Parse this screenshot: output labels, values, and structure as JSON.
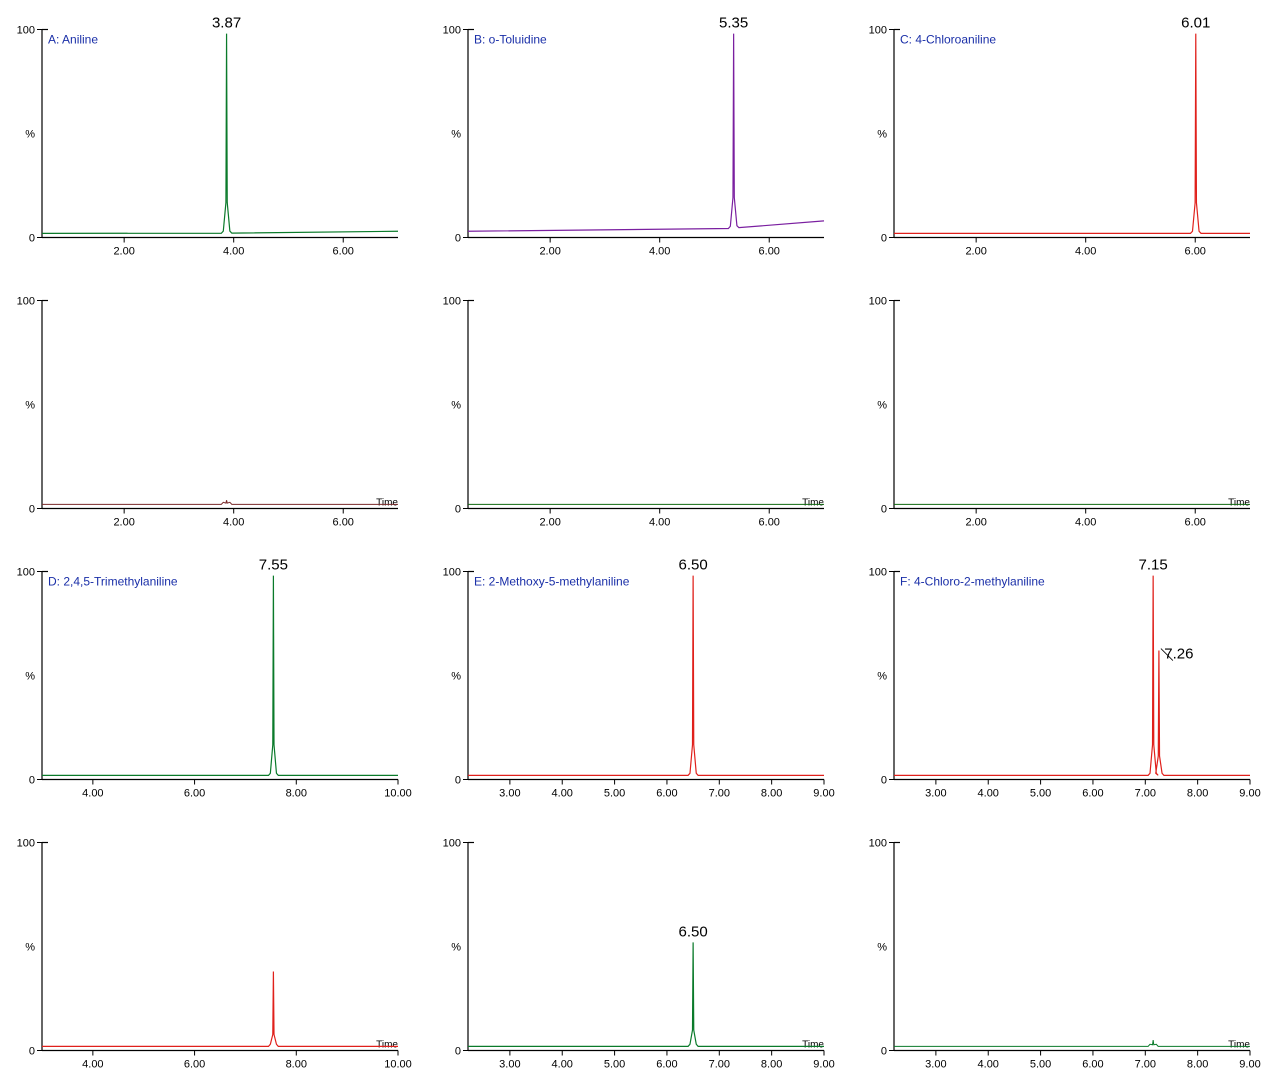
{
  "figure": {
    "grid": {
      "rows": 4,
      "cols": 3
    },
    "background_color": "#ffffff",
    "axis_color": "#000000",
    "axis_stroke_width": 1.2,
    "tick_length": 5,
    "tick_stroke_width": 1,
    "font": {
      "axis_tick_size_pt": 11,
      "compound_label_size_pt": 12,
      "compound_label_color": "#1a2fa8",
      "peak_label_size_pt": 15,
      "time_label_size_pt": 10
    },
    "y_axis": {
      "ylim": [
        0,
        100
      ],
      "ticks": [
        0,
        100
      ],
      "tick_labels": [
        "0",
        "100"
      ],
      "pct_label": "%",
      "pct_label_pos": 50
    },
    "x_axis_time_label": "Time",
    "baseline_y": 2,
    "peak_half_width_x": 0.06
  },
  "panels": [
    {
      "id": "A",
      "row": 0,
      "col": 0,
      "compound_label": "A: Aniline",
      "xlim": [
        0.5,
        7.0
      ],
      "xticks": [
        2.0,
        4.0,
        6.0
      ],
      "xtick_labels": [
        "2.00",
        "4.00",
        "6.00"
      ],
      "show_time_label": false,
      "traces": [
        {
          "color": "#0a7a2a",
          "stroke_width": 1.2,
          "baseline_points": [
            [
              0.5,
              2
            ],
            [
              3.6,
              2
            ],
            [
              7.0,
              3
            ]
          ],
          "peaks": [
            {
              "x": 3.87,
              "height": 98,
              "label": "3.87"
            }
          ]
        }
      ]
    },
    {
      "id": "B",
      "row": 0,
      "col": 1,
      "compound_label": "B: o-Toluidine",
      "xlim": [
        0.5,
        7.0
      ],
      "xticks": [
        2.0,
        4.0,
        6.0
      ],
      "xtick_labels": [
        "2.00",
        "4.00",
        "6.00"
      ],
      "show_time_label": false,
      "traces": [
        {
          "color": "#7a1fa0",
          "stroke_width": 1.2,
          "baseline_points": [
            [
              0.5,
              3
            ],
            [
              4.5,
              4
            ],
            [
              5.1,
              4
            ],
            [
              7.0,
              8
            ]
          ],
          "peaks": [
            {
              "x": 5.35,
              "height": 98,
              "label": "5.35"
            }
          ]
        }
      ]
    },
    {
      "id": "C",
      "row": 0,
      "col": 2,
      "compound_label": "C: 4-Chloroaniline",
      "xlim": [
        0.5,
        7.0
      ],
      "xticks": [
        2.0,
        4.0,
        6.0
      ],
      "xtick_labels": [
        "2.00",
        "4.00",
        "6.00"
      ],
      "show_time_label": false,
      "traces": [
        {
          "color": "#e0201b",
          "stroke_width": 1.2,
          "baseline_points": [
            [
              0.5,
              2
            ],
            [
              5.8,
              2
            ],
            [
              7.0,
              2
            ]
          ],
          "peaks": [
            {
              "x": 6.01,
              "height": 98,
              "label": "6.01"
            }
          ]
        }
      ]
    },
    {
      "id": "A2",
      "row": 1,
      "col": 0,
      "compound_label": "",
      "xlim": [
        0.5,
        7.0
      ],
      "xticks": [
        2.0,
        4.0,
        6.0
      ],
      "xtick_labels": [
        "2.00",
        "4.00",
        "6.00"
      ],
      "show_time_label": true,
      "traces": [
        {
          "color": "#7a2a2a",
          "stroke_width": 1.0,
          "baseline_points": [
            [
              0.5,
              2
            ],
            [
              7.0,
              2
            ]
          ],
          "peaks": [
            {
              "x": 3.87,
              "height": 4,
              "label": ""
            }
          ]
        }
      ]
    },
    {
      "id": "B2",
      "row": 1,
      "col": 1,
      "compound_label": "",
      "xlim": [
        0.5,
        7.0
      ],
      "xticks": [
        2.0,
        4.0,
        6.0
      ],
      "xtick_labels": [
        "2.00",
        "4.00",
        "6.00"
      ],
      "show_time_label": true,
      "traces": [
        {
          "color": "#106a10",
          "stroke_width": 1.0,
          "baseline_points": [
            [
              0.5,
              2
            ],
            [
              7.0,
              2
            ]
          ],
          "peaks": []
        }
      ]
    },
    {
      "id": "C2",
      "row": 1,
      "col": 2,
      "compound_label": "",
      "xlim": [
        0.5,
        7.0
      ],
      "xticks": [
        2.0,
        4.0,
        6.0
      ],
      "xtick_labels": [
        "2.00",
        "4.00",
        "6.00"
      ],
      "show_time_label": true,
      "traces": [
        {
          "color": "#106a10",
          "stroke_width": 1.0,
          "baseline_points": [
            [
              0.5,
              2
            ],
            [
              7.0,
              2
            ]
          ],
          "peaks": []
        }
      ]
    },
    {
      "id": "D",
      "row": 2,
      "col": 0,
      "compound_label": "D: 2,4,5-Trimethylaniline",
      "xlim": [
        3.0,
        10.0
      ],
      "xticks": [
        4.0,
        6.0,
        8.0,
        10.0
      ],
      "xtick_labels": [
        "4.00",
        "6.00",
        "8.00",
        "10.00"
      ],
      "show_time_label": false,
      "traces": [
        {
          "color": "#0a7a2a",
          "stroke_width": 1.2,
          "baseline_points": [
            [
              3.0,
              2
            ],
            [
              7.3,
              2
            ],
            [
              10.0,
              2
            ]
          ],
          "peaks": [
            {
              "x": 7.55,
              "height": 98,
              "label": "7.55"
            }
          ]
        }
      ]
    },
    {
      "id": "E",
      "row": 2,
      "col": 1,
      "compound_label": "E: 2-Methoxy-5-methylaniline",
      "xlim": [
        2.2,
        9.0
      ],
      "xticks": [
        3.0,
        4.0,
        5.0,
        6.0,
        7.0,
        8.0,
        9.0
      ],
      "xtick_labels": [
        "3.00",
        "4.00",
        "5.00",
        "6.00",
        "7.00",
        "8.00",
        "9.00"
      ],
      "show_time_label": false,
      "traces": [
        {
          "color": "#e0201b",
          "stroke_width": 1.2,
          "baseline_points": [
            [
              2.2,
              2
            ],
            [
              6.3,
              2
            ],
            [
              9.0,
              2
            ]
          ],
          "peaks": [
            {
              "x": 6.5,
              "height": 98,
              "label": "6.50"
            }
          ]
        }
      ]
    },
    {
      "id": "F",
      "row": 2,
      "col": 2,
      "compound_label": "F: 4-Chloro-2-methylaniline",
      "xlim": [
        2.2,
        9.0
      ],
      "xticks": [
        3.0,
        4.0,
        5.0,
        6.0,
        7.0,
        8.0,
        9.0
      ],
      "xtick_labels": [
        "3.00",
        "4.00",
        "5.00",
        "6.00",
        "7.00",
        "8.00",
        "9.00"
      ],
      "show_time_label": false,
      "traces": [
        {
          "color": "#e0201b",
          "stroke_width": 1.2,
          "baseline_points": [
            [
              2.2,
              2
            ],
            [
              6.9,
              2
            ],
            [
              9.0,
              2
            ]
          ],
          "peaks": [
            {
              "x": 7.15,
              "height": 98,
              "label": "7.15"
            },
            {
              "x": 7.26,
              "height": 62,
              "label": "7.26",
              "label_dx": 20,
              "label_dy": 14,
              "leader": true
            }
          ]
        }
      ]
    },
    {
      "id": "D2",
      "row": 3,
      "col": 0,
      "compound_label": "",
      "xlim": [
        3.0,
        10.0
      ],
      "xticks": [
        4.0,
        6.0,
        8.0,
        10.0
      ],
      "xtick_labels": [
        "4.00",
        "6.00",
        "8.00",
        "10.00"
      ],
      "show_time_label": true,
      "traces": [
        {
          "color": "#e0201b",
          "stroke_width": 1.2,
          "baseline_points": [
            [
              3.0,
              2
            ],
            [
              10.0,
              2
            ]
          ],
          "peaks": [
            {
              "x": 7.55,
              "height": 38,
              "label": ""
            }
          ]
        }
      ]
    },
    {
      "id": "E2",
      "row": 3,
      "col": 1,
      "compound_label": "",
      "xlim": [
        2.2,
        9.0
      ],
      "xticks": [
        3.0,
        4.0,
        5.0,
        6.0,
        7.0,
        8.0,
        9.0
      ],
      "xtick_labels": [
        "3.00",
        "4.00",
        "5.00",
        "6.00",
        "7.00",
        "8.00",
        "9.00"
      ],
      "show_time_label": true,
      "traces": [
        {
          "color": "#0a7a2a",
          "stroke_width": 1.2,
          "baseline_points": [
            [
              2.2,
              2
            ],
            [
              9.0,
              2
            ]
          ],
          "peaks": [
            {
              "x": 6.5,
              "height": 52,
              "label": "6.50"
            }
          ]
        }
      ]
    },
    {
      "id": "F2",
      "row": 3,
      "col": 2,
      "compound_label": "",
      "xlim": [
        2.2,
        9.0
      ],
      "xticks": [
        3.0,
        4.0,
        5.0,
        6.0,
        7.0,
        8.0,
        9.0
      ],
      "xtick_labels": [
        "3.00",
        "4.00",
        "5.00",
        "6.00",
        "7.00",
        "8.00",
        "9.00"
      ],
      "show_time_label": true,
      "traces": [
        {
          "color": "#0a7a2a",
          "stroke_width": 1.0,
          "baseline_points": [
            [
              2.2,
              2
            ],
            [
              9.0,
              2
            ]
          ],
          "peaks": [
            {
              "x": 7.15,
              "height": 5,
              "label": ""
            }
          ]
        }
      ]
    }
  ]
}
